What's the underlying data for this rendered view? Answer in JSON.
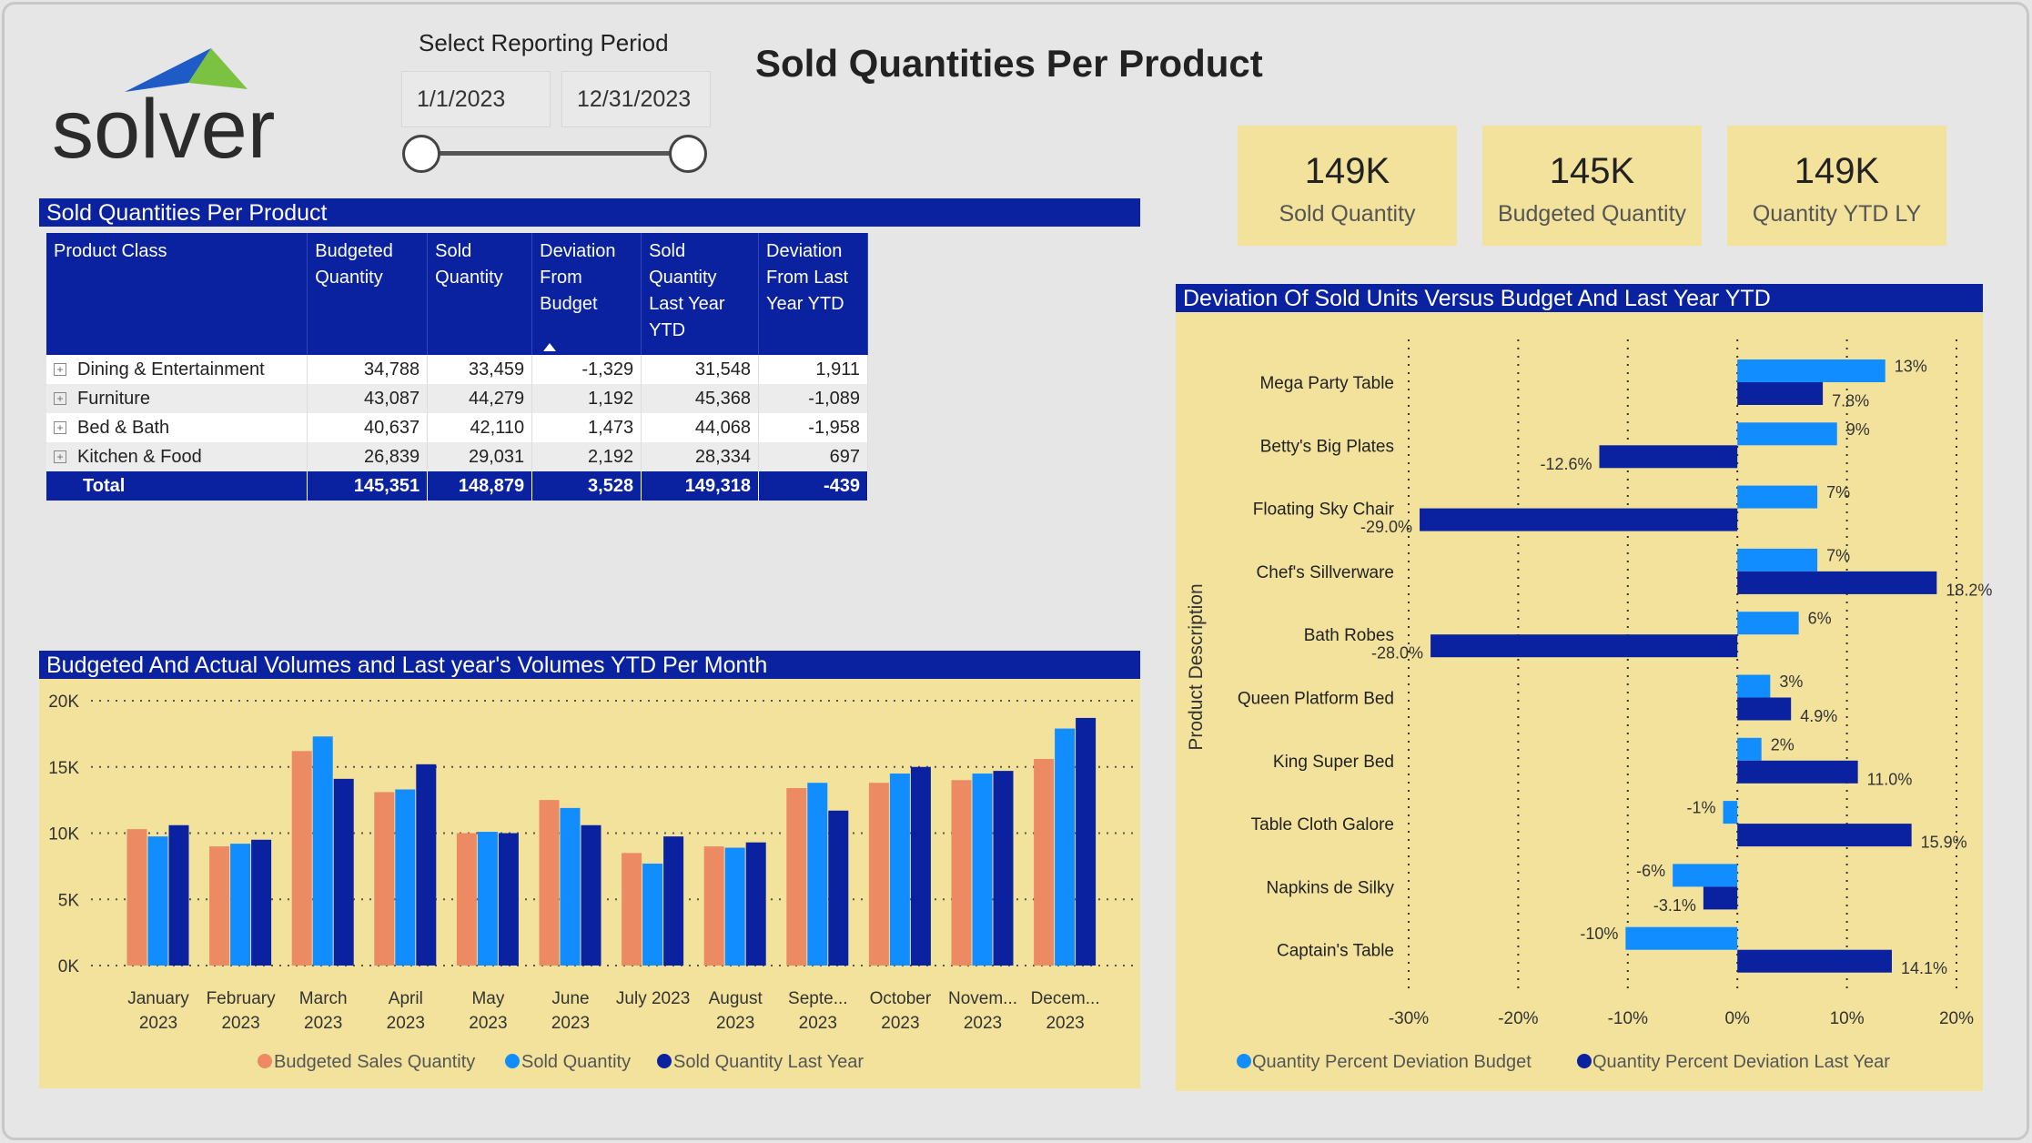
{
  "logo": {
    "text": "solver"
  },
  "period": {
    "label": "Select Reporting Period",
    "start": "1/1/2023",
    "end": "12/31/2023"
  },
  "title": "Sold Quantities Per Product",
  "kpis": [
    {
      "value": "149K",
      "label": "Sold Quantity"
    },
    {
      "value": "145K",
      "label": "Budgeted Quantity"
    },
    {
      "value": "149K",
      "label": "Quantity YTD LY"
    }
  ],
  "table": {
    "title": "Sold Quantities Per Product",
    "headers": [
      "Product Class",
      "Budgeted Quantity",
      "Sold Quantity",
      "Deviation From Budget",
      "Sold Quantity Last Year YTD",
      "Deviation From Last Year YTD"
    ],
    "rows": [
      [
        "Dining & Entertainment",
        "34,788",
        "33,459",
        "-1,329",
        "31,548",
        "1,911"
      ],
      [
        "Furniture",
        "43,087",
        "44,279",
        "1,192",
        "45,368",
        "-1,089"
      ],
      [
        "Bed & Bath",
        "40,637",
        "42,110",
        "1,473",
        "44,068",
        "-1,958"
      ],
      [
        "Kitchen & Food",
        "26,839",
        "29,031",
        "2,192",
        "28,334",
        "697"
      ]
    ],
    "total": [
      "Total",
      "145,351",
      "148,879",
      "3,528",
      "149,318",
      "-439"
    ]
  },
  "chart_data": [
    {
      "type": "bar",
      "title": "Budgeted And Actual Volumes and Last year's Volumes YTD Per Month",
      "categories": [
        "January 2023",
        "February 2023",
        "March 2023",
        "April 2023",
        "May 2023",
        "June 2023",
        "July 2023",
        "August 2023",
        "Septe... 2023",
        "October 2023",
        "Novem... 2023",
        "Decem... 2023"
      ],
      "category_lines": [
        [
          "January",
          "2023"
        ],
        [
          "February",
          "2023"
        ],
        [
          "March",
          "2023"
        ],
        [
          "April",
          "2023"
        ],
        [
          "May",
          "2023"
        ],
        [
          "June",
          "2023"
        ],
        [
          "July 2023",
          ""
        ],
        [
          "August",
          "2023"
        ],
        [
          "Septe...",
          "2023"
        ],
        [
          "October",
          "2023"
        ],
        [
          "Novem...",
          "2023"
        ],
        [
          "Decem...",
          "2023"
        ]
      ],
      "series": [
        {
          "name": "Budgeted Sales Quantity",
          "color": "#ec8a63",
          "values": [
            10300,
            9000,
            16200,
            13100,
            10000,
            12500,
            8500,
            9000,
            13400,
            13800,
            14000,
            15600
          ]
        },
        {
          "name": "Sold Quantity",
          "color": "#118dff",
          "values": [
            9750,
            9200,
            17300,
            13300,
            10100,
            11900,
            7700,
            8900,
            13800,
            14500,
            14500,
            17900
          ]
        },
        {
          "name": "Sold Quantity Last Year",
          "color": "#0a22a0",
          "values": [
            10600,
            9500,
            14100,
            15200,
            10000,
            10600,
            9750,
            9300,
            11700,
            15000,
            14700,
            18700
          ]
        }
      ],
      "ylim": [
        0,
        20000
      ],
      "yticks": [
        "0K",
        "5K",
        "10K",
        "15K",
        "20K"
      ],
      "grid": true,
      "legend": "bottom"
    },
    {
      "type": "bar",
      "orientation": "horizontal",
      "title": "Deviation Of Sold Units Versus Budget And Last Year YTD",
      "ylabel": "Product Description",
      "categories": [
        "Mega Party Table",
        "Betty's Big Plates",
        "Floating Sky Chair",
        "Chef's Sillverware",
        "Bath Robes",
        "Queen Platform Bed",
        "King Super Bed",
        "Table Cloth Galore",
        "Napkins de Silky",
        "Captain's Table"
      ],
      "series": [
        {
          "name": "Quantity Percent Deviation Budget",
          "color": "#118dff",
          "values": [
            13.5,
            9.1,
            7.3,
            7.3,
            5.6,
            3.0,
            2.2,
            -1.3,
            -5.9,
            -10.2
          ],
          "labels": [
            "13%",
            "9%",
            "7%",
            "7%",
            "6%",
            "3%",
            "2%",
            "-1%",
            "-6%",
            "-10%"
          ]
        },
        {
          "name": "Quantity Percent Deviation Last Year",
          "color": "#0a22a0",
          "values": [
            7.8,
            -12.6,
            -29.0,
            18.2,
            -28.0,
            4.9,
            11.0,
            15.9,
            -3.1,
            14.1
          ],
          "labels": [
            "7.8%",
            "-12.6%",
            "-29.0%",
            "18.2%",
            "-28.0%",
            "4.9%",
            "11.0%",
            "15.9%",
            "-3.1%",
            "14.1%"
          ]
        }
      ],
      "xlim": [
        -30,
        20
      ],
      "xticks": [
        "-30%",
        "-20%",
        "-10%",
        "0%",
        "10%",
        "20%"
      ],
      "grid": true,
      "legend": "bottom"
    }
  ]
}
